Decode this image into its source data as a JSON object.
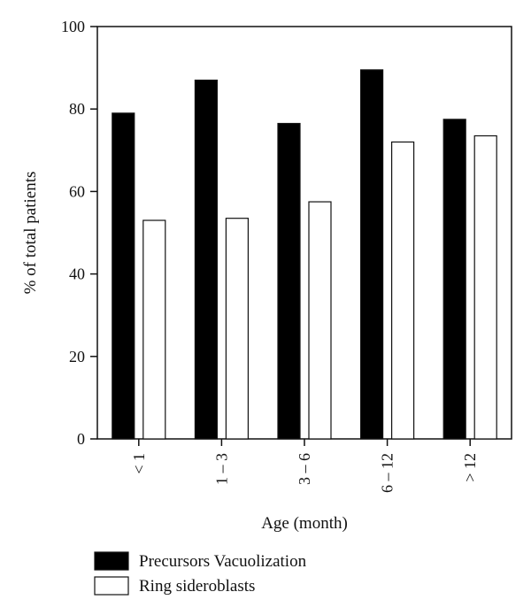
{
  "chart_data": {
    "type": "bar",
    "categories": [
      "< 1",
      "1 – 3",
      "3 – 6",
      "6 – 12",
      "> 12"
    ],
    "series": [
      {
        "name": "Precursors Vacuolization",
        "color": "#000000",
        "values": [
          79,
          87,
          76.5,
          89.5,
          77.5
        ]
      },
      {
        "name": "Ring sideroblasts",
        "color": "#ffffff",
        "values": [
          53,
          53.5,
          57.5,
          72,
          73.5
        ]
      }
    ],
    "xlabel": "Age (month)",
    "ylabel": "% of total patients",
    "ylim": [
      0,
      100
    ],
    "yticks": [
      0,
      20,
      40,
      60,
      80,
      100
    ],
    "grid": false,
    "legend_position": "bottom-left"
  }
}
